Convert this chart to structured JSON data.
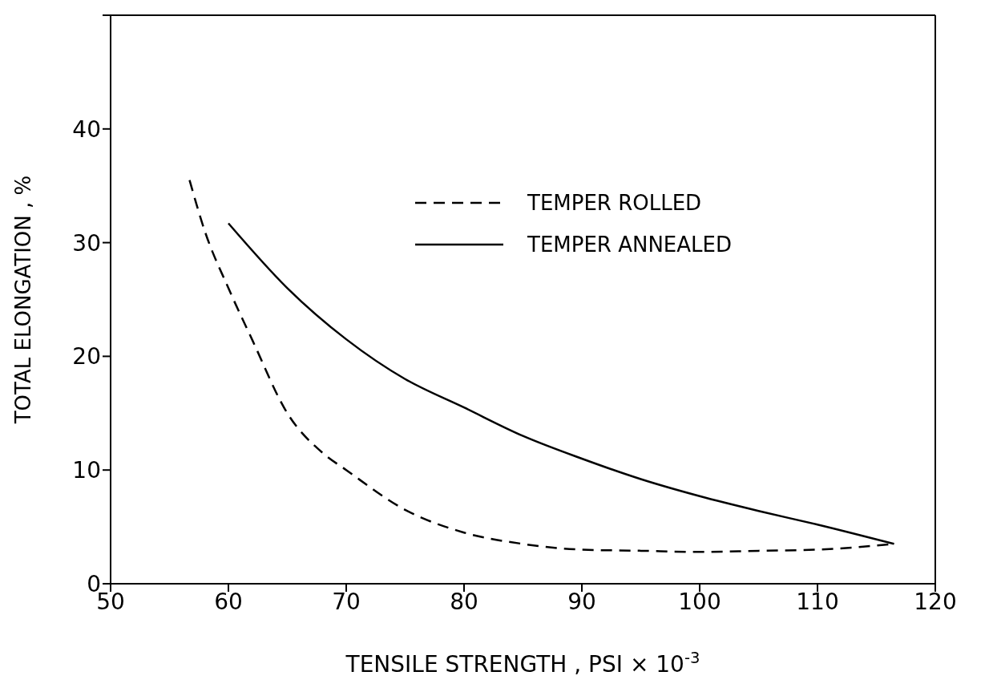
{
  "chart_data": {
    "type": "line",
    "xlabel": "TENSILE STRENGTH , PSI × 10$^{-3}$",
    "ylabel": "TOTAL ELONGATION , %",
    "xlim": [
      50,
      120
    ],
    "xticks": [
      50,
      60,
      70,
      80,
      90,
      100,
      110,
      120
    ],
    "ylim": [
      0,
      50
    ],
    "yticks": [
      0,
      10,
      20,
      30,
      40,
      {
        "value": 50,
        "label": null
      }
    ],
    "legend": "top right",
    "marker": "none",
    "series": [
      {
        "name": "TEMPER ROLLED",
        "color": "#000000",
        "line_style": "dashed",
        "x": [
          56.7,
          58,
          60,
          62,
          65,
          68,
          70,
          75,
          80,
          85,
          90,
          95,
          100,
          105,
          110,
          116.5
        ],
        "values": [
          35.5,
          31,
          26,
          21.5,
          15,
          11.5,
          10,
          6.5,
          4.5,
          3.5,
          3,
          2.9,
          2.8,
          2.9,
          3,
          3.5
        ]
      },
      {
        "name": "TEMPER ANNEALED",
        "color": "#000000",
        "line_style": "solid",
        "x": [
          60,
          65,
          70,
          75,
          80,
          85,
          90,
          95,
          100,
          105,
          110,
          116.5
        ],
        "values": [
          31.7,
          26,
          21.5,
          18,
          15.5,
          13,
          11,
          9.2,
          7.7,
          6.4,
          5.2,
          3.5
        ]
      }
    ]
  }
}
